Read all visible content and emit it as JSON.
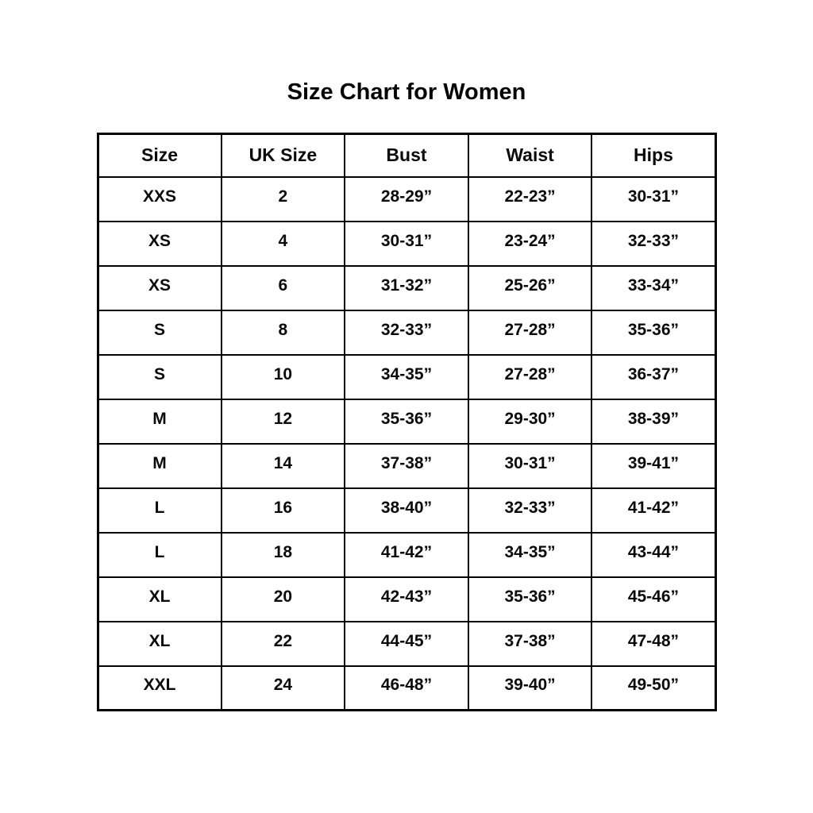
{
  "page": {
    "title": "Size Chart for Women"
  },
  "table": {
    "headers": [
      "Size",
      "UK Size",
      "Bust",
      "Waist",
      "Hips"
    ],
    "rows": [
      [
        "XXS",
        "2",
        "28-29”",
        "22-23”",
        "30-31”"
      ],
      [
        "XS",
        "4",
        "30-31”",
        "23-24”",
        "32-33”"
      ],
      [
        "XS",
        "6",
        "31-32”",
        "25-26”",
        "33-34”"
      ],
      [
        "S",
        "8",
        "32-33”",
        "27-28”",
        "35-36”"
      ],
      [
        "S",
        "10",
        "34-35”",
        "27-28”",
        "36-37”"
      ],
      [
        "M",
        "12",
        "35-36”",
        "29-30”",
        "38-39”"
      ],
      [
        "M",
        "14",
        "37-38”",
        "30-31”",
        "39-41”"
      ],
      [
        "L",
        "16",
        "38-40”",
        "32-33”",
        "41-42”"
      ],
      [
        "L",
        "18",
        "41-42”",
        "34-35”",
        "43-44”"
      ],
      [
        "XL",
        "20",
        "42-43”",
        "35-36”",
        "45-46”"
      ],
      [
        "XL",
        "22",
        "44-45”",
        "37-38”",
        "47-48”"
      ],
      [
        "XXL",
        "24",
        "46-48”",
        "39-40”",
        "49-50”"
      ]
    ]
  },
  "colors": {
    "background": "#ffffff",
    "border": "#000000",
    "text": "#0a0a0a"
  },
  "chart_data": {
    "type": "table",
    "title": "Size Chart for Women",
    "columns": [
      "Size",
      "UK Size",
      "Bust",
      "Waist",
      "Hips"
    ],
    "rows": [
      [
        "XXS",
        "2",
        "28-29”",
        "22-23”",
        "30-31”"
      ],
      [
        "XS",
        "4",
        "30-31”",
        "23-24”",
        "32-33”"
      ],
      [
        "XS",
        "6",
        "31-32”",
        "25-26”",
        "33-34”"
      ],
      [
        "S",
        "8",
        "32-33”",
        "27-28”",
        "35-36”"
      ],
      [
        "S",
        "10",
        "34-35”",
        "27-28”",
        "36-37”"
      ],
      [
        "M",
        "12",
        "35-36”",
        "29-30”",
        "38-39”"
      ],
      [
        "M",
        "14",
        "37-38”",
        "30-31”",
        "39-41”"
      ],
      [
        "L",
        "16",
        "38-40”",
        "32-33”",
        "41-42”"
      ],
      [
        "L",
        "18",
        "41-42”",
        "34-35”",
        "43-44”"
      ],
      [
        "XL",
        "20",
        "42-43”",
        "35-36”",
        "45-46”"
      ],
      [
        "XL",
        "22",
        "44-45”",
        "37-38”",
        "47-48”"
      ],
      [
        "XXL",
        "24",
        "46-48”",
        "39-40”",
        "49-50”"
      ]
    ]
  }
}
